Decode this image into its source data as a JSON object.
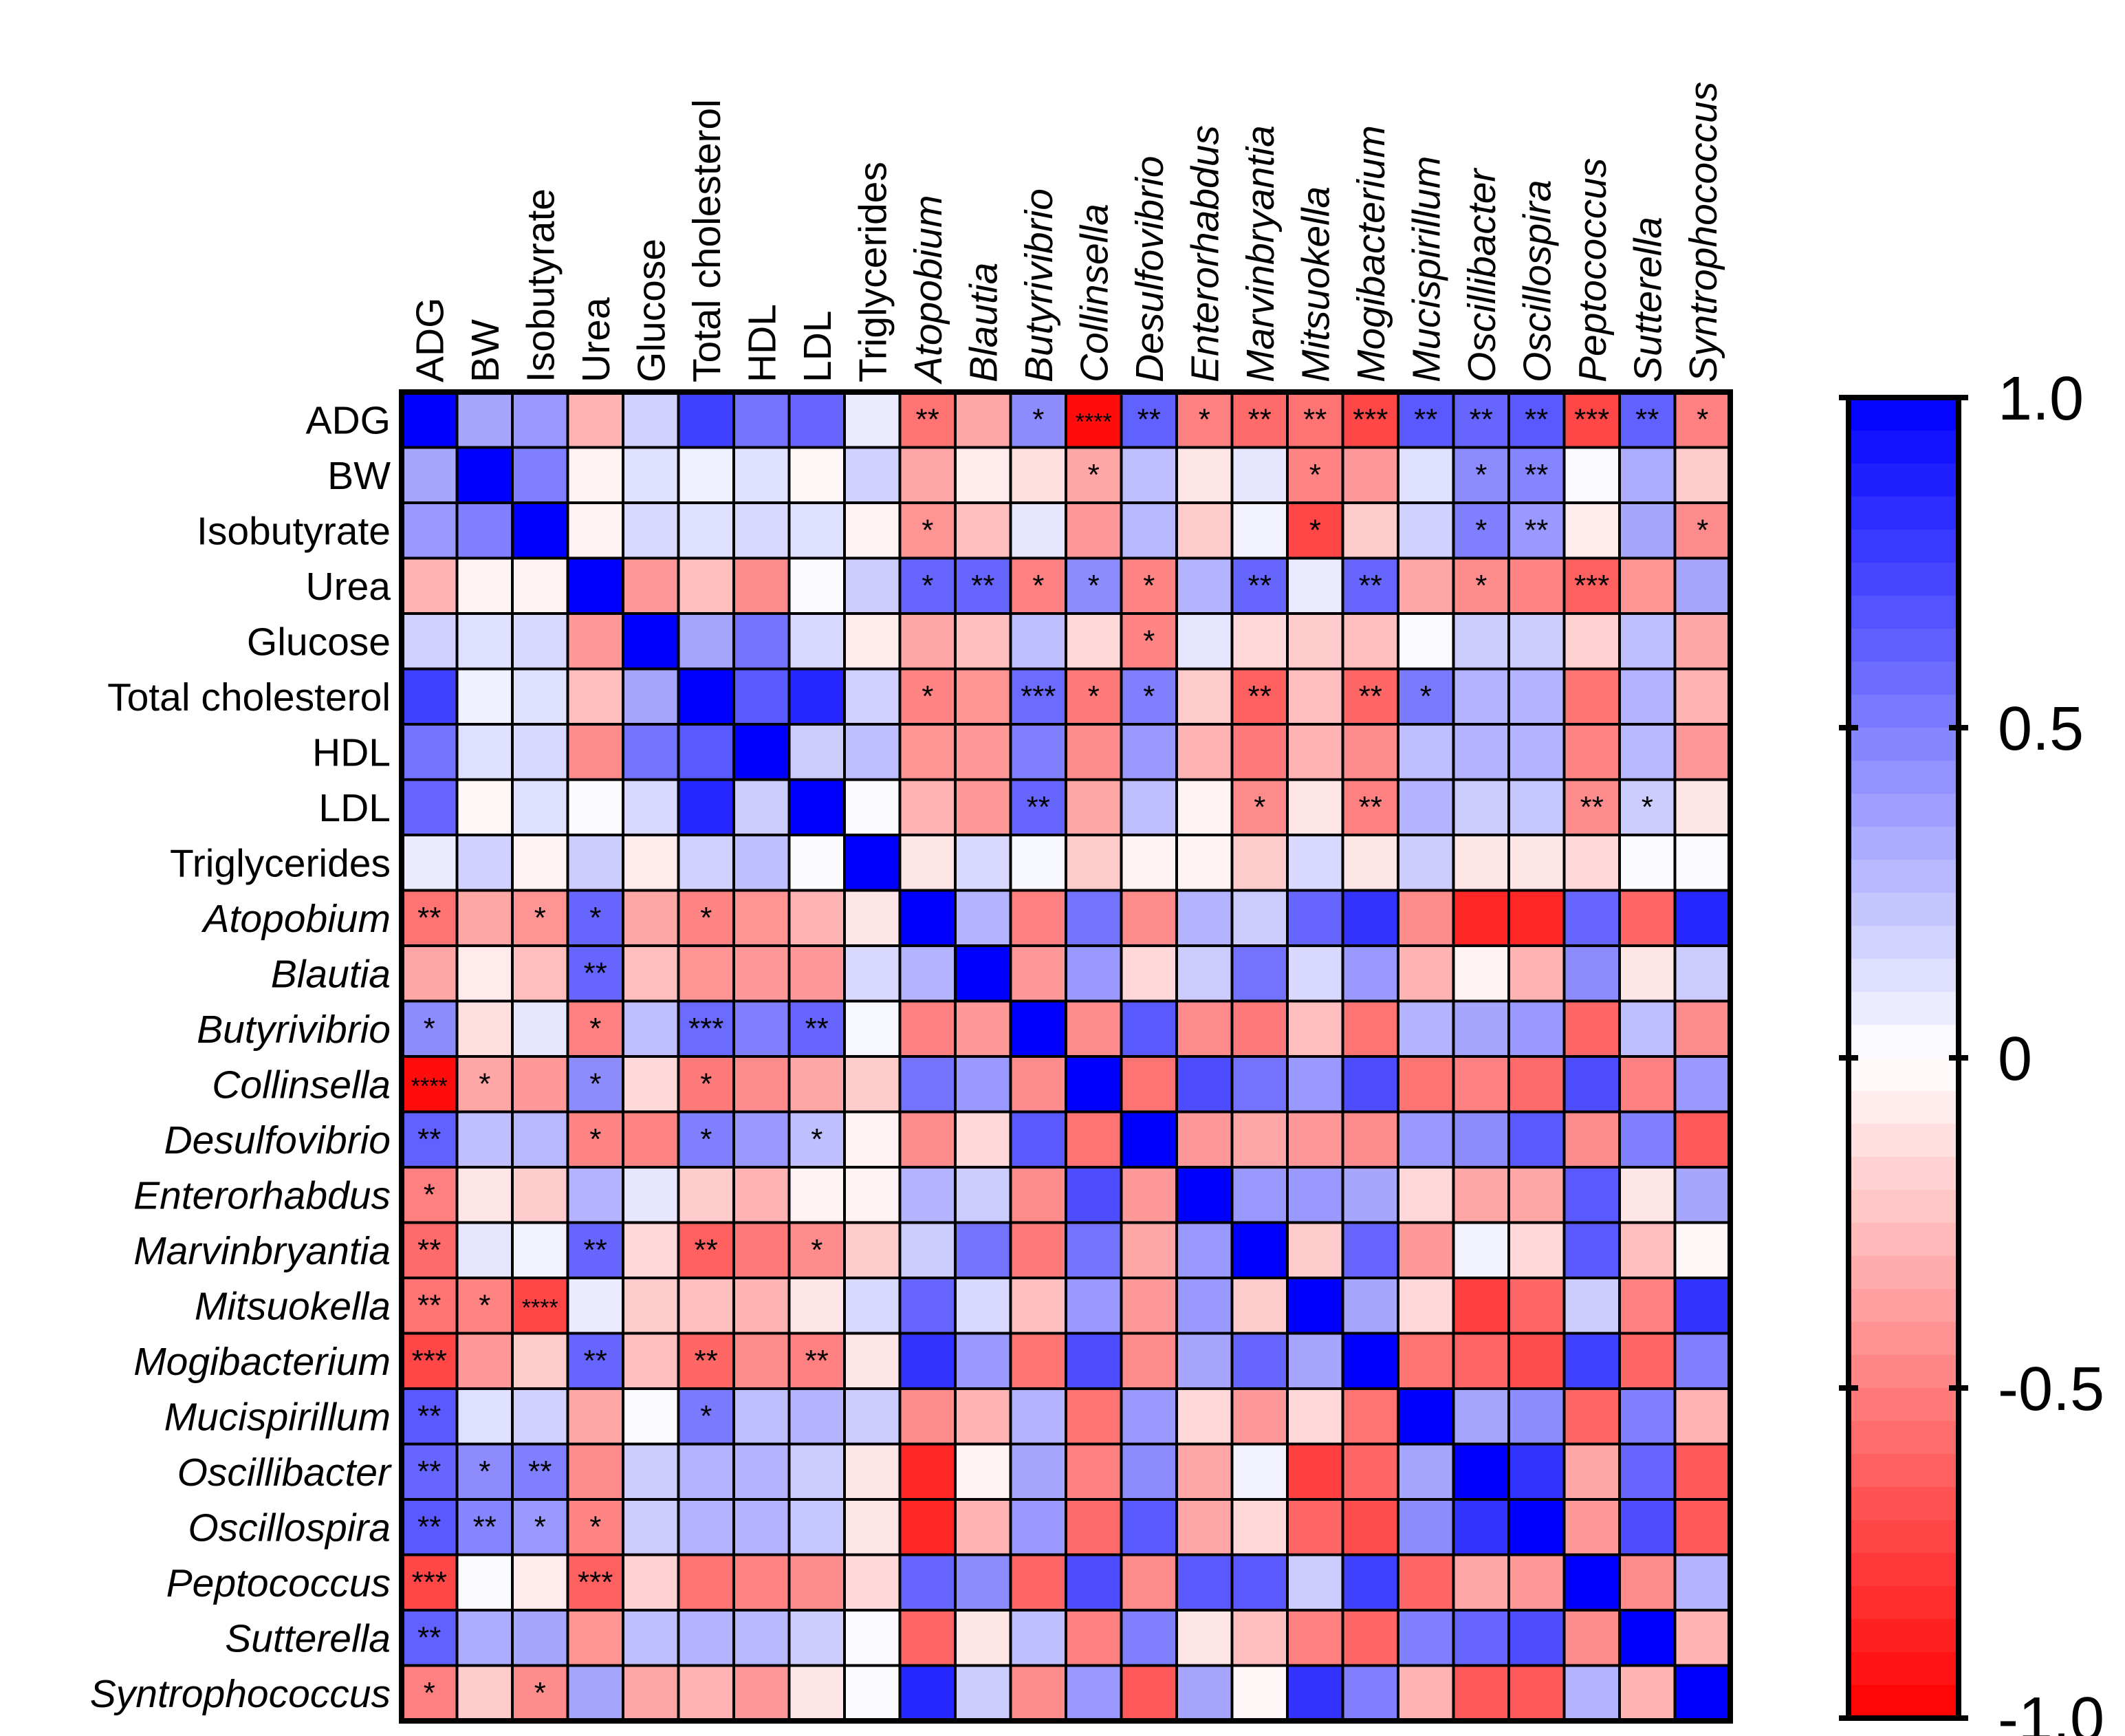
{
  "chart_data": {
    "type": "heatmap",
    "title": "",
    "xlabel": "",
    "ylabel": "",
    "variables": [
      "ADG",
      "BW",
      "Isobutyrate",
      "Urea",
      "Glucose",
      "Total cholesterol",
      "HDL",
      "LDL",
      "Triglycerides",
      "Atopobium",
      "Blautia",
      "Butyrivibrio",
      "Collinsella",
      "Desulfovibrio",
      "Enterorhabdus",
      "Marvinbryantia",
      "Mitsuokella",
      "Mogibacterium",
      "Mucispirillum",
      "Oscillibacter",
      "Oscillospira",
      "Peptococcus",
      "Sutterella",
      "Syntrophococcus"
    ],
    "italic_from_index": 9,
    "value_range": [
      -1.0,
      1.0
    ],
    "colorbar_ticks": [
      "1.0",
      "0.5",
      "0",
      "-0.5",
      "-1.0"
    ],
    "colorbar_tick_values": [
      1.0,
      0.5,
      0,
      -0.5,
      -1.0
    ],
    "colors": {
      "positive": "#0000ff",
      "zero": "#ffffff",
      "negative": "#ff0000"
    },
    "matrix": [
      [
        1.0,
        0.35,
        0.4,
        -0.3,
        0.18,
        0.75,
        0.55,
        0.6,
        0.08,
        -0.55,
        -0.35,
        0.45,
        -0.95,
        0.62,
        -0.5,
        -0.58,
        -0.55,
        -0.72,
        0.65,
        0.6,
        0.65,
        -0.72,
        0.62,
        -0.5
      ],
      [
        0.35,
        1.0,
        0.5,
        -0.05,
        0.12,
        0.06,
        0.12,
        -0.03,
        0.18,
        -0.35,
        -0.08,
        -0.12,
        -0.35,
        0.25,
        -0.1,
        0.1,
        -0.48,
        -0.4,
        0.12,
        0.45,
        0.48,
        0.02,
        0.32,
        -0.2
      ],
      [
        0.4,
        0.5,
        1.0,
        -0.05,
        0.15,
        0.12,
        0.15,
        0.12,
        -0.05,
        -0.42,
        -0.25,
        0.1,
        -0.4,
        0.28,
        -0.2,
        0.05,
        -0.72,
        -0.2,
        0.18,
        0.5,
        0.4,
        -0.08,
        0.35,
        -0.45
      ],
      [
        -0.3,
        -0.05,
        -0.05,
        1.0,
        -0.4,
        -0.25,
        -0.45,
        0.02,
        0.2,
        0.6,
        0.6,
        -0.5,
        0.45,
        -0.48,
        0.3,
        0.6,
        0.08,
        0.6,
        -0.35,
        -0.45,
        -0.48,
        -0.62,
        -0.42,
        0.35
      ],
      [
        0.18,
        0.12,
        0.15,
        -0.4,
        1.0,
        0.35,
        0.55,
        0.15,
        -0.08,
        -0.35,
        -0.25,
        0.25,
        -0.15,
        -0.48,
        0.1,
        -0.15,
        -0.2,
        -0.25,
        0.02,
        0.2,
        0.2,
        -0.18,
        0.25,
        -0.35
      ],
      [
        0.75,
        0.06,
        0.12,
        -0.25,
        0.35,
        1.0,
        0.65,
        0.85,
        0.18,
        -0.48,
        -0.42,
        0.58,
        -0.52,
        0.5,
        -0.2,
        -0.62,
        -0.25,
        -0.6,
        0.52,
        0.3,
        0.3,
        -0.55,
        0.3,
        -0.3
      ],
      [
        0.55,
        0.12,
        0.15,
        -0.45,
        0.55,
        0.65,
        1.0,
        0.2,
        0.25,
        -0.42,
        -0.4,
        0.5,
        -0.45,
        0.4,
        -0.3,
        -0.52,
        -0.3,
        -0.45,
        0.25,
        0.3,
        0.3,
        -0.48,
        0.28,
        -0.4
      ],
      [
        0.6,
        -0.03,
        0.12,
        0.02,
        0.15,
        0.85,
        0.2,
        1.0,
        0.02,
        -0.3,
        -0.4,
        0.6,
        -0.35,
        0.25,
        -0.05,
        -0.45,
        -0.1,
        -0.5,
        0.3,
        0.2,
        0.22,
        -0.45,
        0.2,
        -0.1
      ],
      [
        0.08,
        0.18,
        -0.05,
        0.2,
        -0.08,
        0.18,
        0.25,
        0.02,
        1.0,
        -0.1,
        0.15,
        0.03,
        -0.2,
        -0.05,
        -0.05,
        -0.2,
        0.15,
        -0.1,
        0.2,
        -0.1,
        -0.1,
        -0.15,
        0.02,
        0.02
      ],
      [
        -0.55,
        -0.35,
        -0.42,
        0.6,
        -0.35,
        -0.48,
        -0.42,
        -0.3,
        -0.1,
        1.0,
        0.3,
        -0.5,
        0.55,
        -0.45,
        0.3,
        0.2,
        0.6,
        0.8,
        -0.45,
        -0.85,
        -0.85,
        0.6,
        -0.6,
        0.85
      ],
      [
        -0.35,
        -0.08,
        -0.25,
        0.6,
        -0.25,
        -0.42,
        -0.4,
        -0.4,
        0.15,
        0.3,
        1.0,
        -0.4,
        0.4,
        -0.15,
        0.2,
        0.55,
        0.15,
        0.4,
        -0.3,
        -0.05,
        -0.3,
        0.45,
        -0.1,
        0.2
      ],
      [
        0.45,
        -0.12,
        0.1,
        -0.5,
        0.25,
        0.58,
        0.5,
        0.6,
        0.03,
        -0.5,
        -0.4,
        1.0,
        -0.45,
        0.65,
        -0.45,
        -0.52,
        -0.25,
        -0.55,
        0.3,
        0.35,
        0.4,
        -0.6,
        0.25,
        -0.45
      ],
      [
        -0.95,
        -0.35,
        -0.4,
        0.45,
        -0.15,
        -0.52,
        -0.45,
        -0.35,
        -0.2,
        0.55,
        0.4,
        -0.45,
        1.0,
        -0.55,
        0.7,
        0.55,
        0.4,
        0.7,
        -0.55,
        -0.5,
        -0.58,
        0.7,
        -0.5,
        0.4
      ],
      [
        0.62,
        0.25,
        0.28,
        -0.48,
        -0.48,
        0.5,
        0.4,
        0.25,
        -0.05,
        -0.45,
        -0.15,
        0.65,
        -0.55,
        1.0,
        -0.4,
        -0.35,
        -0.4,
        -0.45,
        0.4,
        0.45,
        0.65,
        -0.45,
        0.5,
        -0.65
      ],
      [
        -0.5,
        -0.1,
        -0.2,
        0.3,
        0.1,
        -0.2,
        -0.3,
        -0.05,
        -0.05,
        0.3,
        0.2,
        -0.45,
        0.7,
        -0.4,
        1.0,
        0.4,
        0.4,
        0.35,
        -0.15,
        -0.35,
        -0.35,
        0.65,
        -0.1,
        0.35
      ],
      [
        -0.58,
        0.1,
        0.05,
        0.6,
        -0.15,
        -0.62,
        -0.52,
        -0.45,
        -0.2,
        0.2,
        0.55,
        -0.52,
        0.55,
        -0.35,
        0.4,
        1.0,
        -0.2,
        0.6,
        -0.4,
        0.05,
        -0.15,
        0.65,
        -0.25,
        -0.03
      ],
      [
        -0.55,
        -0.48,
        -0.72,
        0.08,
        -0.2,
        -0.25,
        -0.3,
        -0.1,
        0.15,
        0.6,
        0.15,
        -0.25,
        0.4,
        -0.4,
        0.4,
        -0.2,
        1.0,
        0.35,
        -0.15,
        -0.75,
        -0.6,
        0.2,
        -0.5,
        0.8
      ],
      [
        -0.72,
        -0.4,
        -0.2,
        0.6,
        -0.25,
        -0.6,
        -0.45,
        -0.5,
        -0.1,
        0.8,
        0.4,
        -0.55,
        0.7,
        -0.45,
        0.35,
        0.6,
        0.35,
        1.0,
        -0.55,
        -0.6,
        -0.7,
        0.75,
        -0.6,
        0.5
      ],
      [
        0.65,
        0.12,
        0.18,
        -0.35,
        0.02,
        0.52,
        0.25,
        0.3,
        0.2,
        -0.45,
        -0.3,
        0.3,
        -0.55,
        0.4,
        -0.15,
        -0.4,
        -0.15,
        -0.55,
        1.0,
        0.35,
        0.45,
        -0.6,
        0.5,
        -0.3
      ],
      [
        0.6,
        0.45,
        0.5,
        -0.45,
        0.2,
        0.3,
        0.3,
        0.2,
        -0.1,
        -0.85,
        -0.05,
        0.35,
        -0.5,
        0.45,
        -0.35,
        0.05,
        -0.75,
        -0.6,
        0.35,
        1.0,
        0.8,
        -0.35,
        0.6,
        -0.65
      ],
      [
        0.65,
        0.48,
        0.4,
        -0.48,
        0.2,
        0.3,
        0.3,
        0.22,
        -0.1,
        -0.85,
        -0.3,
        0.4,
        -0.58,
        0.65,
        -0.35,
        -0.15,
        -0.6,
        -0.7,
        0.45,
        0.8,
        1.0,
        -0.4,
        0.7,
        -0.65
      ],
      [
        -0.72,
        0.02,
        -0.08,
        -0.62,
        -0.18,
        -0.55,
        -0.48,
        -0.45,
        -0.15,
        0.6,
        0.45,
        -0.6,
        0.7,
        -0.45,
        0.65,
        0.65,
        0.2,
        0.75,
        -0.6,
        -0.35,
        -0.4,
        1.0,
        -0.45,
        0.3
      ],
      [
        0.62,
        0.32,
        0.35,
        -0.42,
        0.25,
        0.3,
        0.28,
        0.2,
        0.02,
        -0.6,
        -0.1,
        0.25,
        -0.5,
        0.5,
        -0.1,
        -0.25,
        -0.5,
        -0.6,
        0.5,
        0.6,
        0.7,
        -0.45,
        1.0,
        -0.3
      ],
      [
        -0.5,
        -0.2,
        -0.45,
        0.35,
        -0.35,
        -0.3,
        -0.4,
        -0.1,
        0.02,
        0.85,
        0.2,
        -0.45,
        0.4,
        -0.65,
        0.35,
        -0.03,
        0.8,
        0.5,
        -0.3,
        -0.65,
        -0.65,
        0.3,
        -0.3,
        1.0
      ]
    ],
    "significance": [
      [
        "",
        "",
        "",
        "",
        "",
        "",
        "",
        "",
        "",
        "**",
        "",
        "*",
        "****",
        "**",
        "*",
        "**",
        "**",
        "***",
        "**",
        "**",
        "**",
        "***",
        "**",
        "*"
      ],
      [
        "",
        "",
        "",
        "",
        "",
        "",
        "",
        "",
        "",
        "",
        "",
        "",
        "*",
        "",
        "",
        "",
        "*",
        "",
        "",
        "*",
        "**",
        "",
        "",
        ""
      ],
      [
        "",
        "",
        "",
        "",
        "",
        "",
        "",
        "",
        "",
        "*",
        "",
        "",
        "",
        "",
        "",
        "",
        "*",
        "",
        "",
        "*",
        "**",
        "",
        "",
        "*"
      ],
      [
        "",
        "",
        "",
        "",
        "",
        "",
        "",
        "",
        "",
        "*",
        "**",
        "*",
        "*",
        "*",
        "",
        "**",
        "",
        "**",
        "",
        "*",
        "",
        "***",
        "",
        ""
      ],
      [
        "",
        "",
        "",
        "",
        "",
        "",
        "",
        "",
        "",
        "",
        "",
        "",
        "",
        "*",
        "",
        "",
        "",
        "",
        "",
        "",
        "",
        "",
        "",
        ""
      ],
      [
        "",
        "",
        "",
        "",
        "",
        "",
        "",
        "",
        "",
        "*",
        "",
        "***",
        "*",
        "*",
        "",
        "**",
        "",
        "**",
        "*",
        "",
        "",
        "",
        "",
        ""
      ],
      [
        "",
        "",
        "",
        "",
        "",
        "",
        "",
        "",
        "",
        "",
        "",
        "",
        "",
        "",
        "",
        "",
        "",
        "",
        "",
        "",
        "",
        "",
        "",
        ""
      ],
      [
        "",
        "",
        "",
        "",
        "",
        "",
        "",
        "",
        "",
        "",
        "",
        "**",
        "",
        "",
        "",
        "*",
        "",
        "**",
        "",
        "",
        "",
        "**",
        "*",
        ""
      ],
      [
        "",
        "",
        "",
        "",
        "",
        "",
        "",
        "",
        "",
        "",
        "",
        "",
        "",
        "",
        "",
        "",
        "",
        "",
        "",
        "",
        "",
        "",
        "",
        ""
      ],
      [
        "**",
        "",
        "*",
        "*",
        "",
        "*",
        "",
        "",
        "",
        "",
        "",
        "",
        "",
        "",
        "",
        "",
        "",
        "",
        "",
        "",
        "",
        "",
        "",
        ""
      ],
      [
        "",
        "",
        "",
        "**",
        "",
        "",
        "",
        "",
        "",
        "",
        "",
        "",
        "",
        "",
        "",
        "",
        "",
        "",
        "",
        "",
        "",
        "",
        "",
        ""
      ],
      [
        "*",
        "",
        "",
        "*",
        "",
        "***",
        "",
        "**",
        "",
        "",
        "",
        "",
        "",
        "",
        "",
        "",
        "",
        "",
        "",
        "",
        "",
        "",
        "",
        ""
      ],
      [
        "****",
        "*",
        "",
        "*",
        "",
        "*",
        "",
        "",
        "",
        "",
        "",
        "",
        "",
        "",
        "",
        "",
        "",
        "",
        "",
        "",
        "",
        "",
        "",
        ""
      ],
      [
        "**",
        "",
        "",
        "*",
        "",
        "*",
        "",
        "*",
        "",
        "",
        "",
        "",
        "",
        "",
        "",
        "",
        "",
        "",
        "",
        "",
        "",
        "",
        "",
        ""
      ],
      [
        "*",
        "",
        "",
        "",
        "",
        "",
        "",
        "",
        "",
        "",
        "",
        "",
        "",
        "",
        "",
        "",
        "",
        "",
        "",
        "",
        "",
        "",
        "",
        ""
      ],
      [
        "**",
        "",
        "",
        "**",
        "",
        "**",
        "",
        "*",
        "",
        "",
        "",
        "",
        "",
        "",
        "",
        "",
        "",
        "",
        "",
        "",
        "",
        "",
        "",
        ""
      ],
      [
        "**",
        "*",
        "****",
        "",
        "",
        "",
        "",
        "",
        "",
        "",
        "",
        "",
        "",
        "",
        "",
        "",
        "",
        "",
        "",
        "",
        "",
        "",
        "",
        ""
      ],
      [
        "***",
        "",
        "",
        "**",
        "",
        "**",
        "",
        "**",
        "",
        "",
        "",
        "",
        "",
        "",
        "",
        "",
        "",
        "",
        "",
        "",
        "",
        "",
        "",
        ""
      ],
      [
        "**",
        "",
        "",
        "",
        "",
        "*",
        "",
        "",
        "",
        "",
        "",
        "",
        "",
        "",
        "",
        "",
        "",
        "",
        "",
        "",
        "",
        "",
        "",
        ""
      ],
      [
        "**",
        "*",
        "**",
        "",
        "",
        "",
        "",
        "",
        "",
        "",
        "",
        "",
        "",
        "",
        "",
        "",
        "",
        "",
        "",
        "",
        "",
        "",
        "",
        ""
      ],
      [
        "**",
        "**",
        "*",
        "*",
        "",
        "",
        "",
        "",
        "",
        "",
        "",
        "",
        "",
        "",
        "",
        "",
        "",
        "",
        "",
        "",
        "",
        "",
        "",
        ""
      ],
      [
        "***",
        "",
        "",
        "***",
        "",
        "",
        "",
        "",
        "",
        "",
        "",
        "",
        "",
        "",
        "",
        "",
        "",
        "",
        "",
        "",
        "",
        "",
        "",
        ""
      ],
      [
        "**",
        "",
        "",
        "",
        "",
        "",
        "",
        "",
        "",
        "",
        "",
        "",
        "",
        "",
        "",
        "",
        "",
        "",
        "",
        "",
        "",
        "",
        "",
        ""
      ],
      [
        "*",
        "",
        "*",
        "",
        "",
        "",
        "",
        "",
        "",
        "",
        "",
        "",
        "",
        "",
        "",
        "",
        "",
        "",
        "",
        "",
        "",
        "",
        "",
        ""
      ]
    ]
  }
}
